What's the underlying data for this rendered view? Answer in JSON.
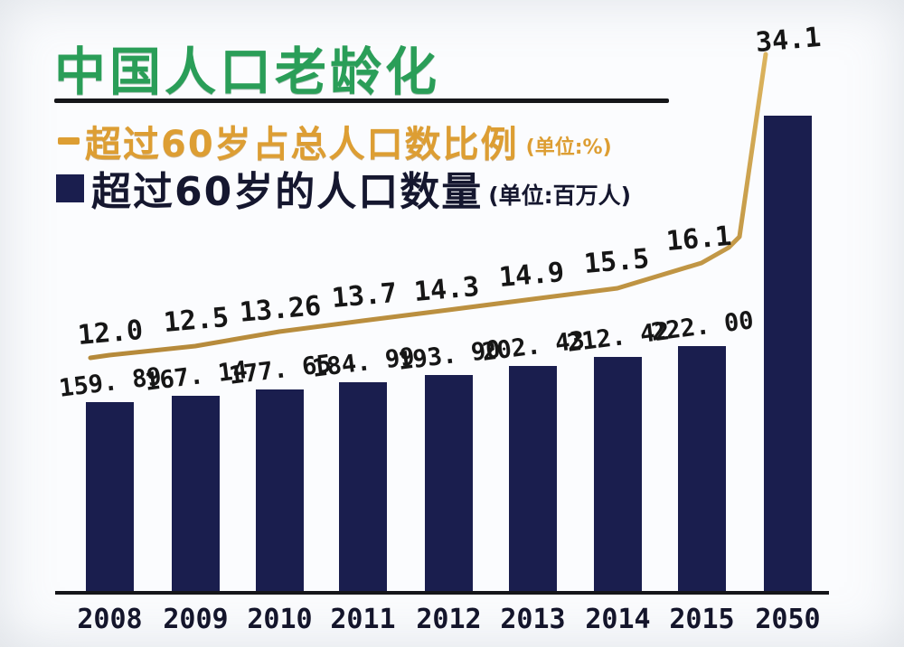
{
  "title": "中国人口老龄化",
  "legend": {
    "line": {
      "label": "超过60岁占总人口数比例",
      "unit": "(单位:%)"
    },
    "bar": {
      "label": "超过60岁的人口数量",
      "unit": "(单位:百万人)"
    }
  },
  "colors": {
    "title_green": "#2a9e58",
    "legend_orange": "#dd9e33",
    "bar_navy": "#1a1e4e",
    "line_gold": "#c9a145",
    "text_black": "#161616",
    "background": "#f4f6f8"
  },
  "chart_data": {
    "type": "bar",
    "title": "中国人口老龄化",
    "categories": [
      "2008",
      "2009",
      "2010",
      "2011",
      "2012",
      "2013",
      "2014",
      "2015",
      "2050"
    ],
    "series": [
      {
        "name": "超过60岁占总人口数比例",
        "type": "line",
        "unit": "%",
        "values": [
          12.0,
          12.5,
          13.26,
          13.7,
          14.3,
          14.9,
          15.5,
          16.1,
          34.1
        ],
        "labels": [
          "12.0",
          "12.5",
          "13.26",
          "13.7",
          "14.3",
          "14.9",
          "15.5",
          "16.1",
          "34.1"
        ],
        "color": "#c9a145"
      },
      {
        "name": "超过60岁的人口数量",
        "type": "bar",
        "unit": "百万人",
        "values": [
          159.89,
          167.14,
          177.65,
          184.99,
          193.9,
          202.43,
          212.42,
          222.0,
          null
        ],
        "labels": [
          "159. 89",
          "167. 14",
          "177. 65",
          "184. 99",
          "193. 90",
          "202. 43",
          "212. 42",
          "222. 00",
          ""
        ],
        "color": "#1a1e4e"
      }
    ],
    "xlabel": "",
    "ylabel": "",
    "grid": false,
    "legend_position": "top-left",
    "notes": "2050 bar is drawn much taller but carries no printed value label; line value for 2050 is 34.1"
  }
}
